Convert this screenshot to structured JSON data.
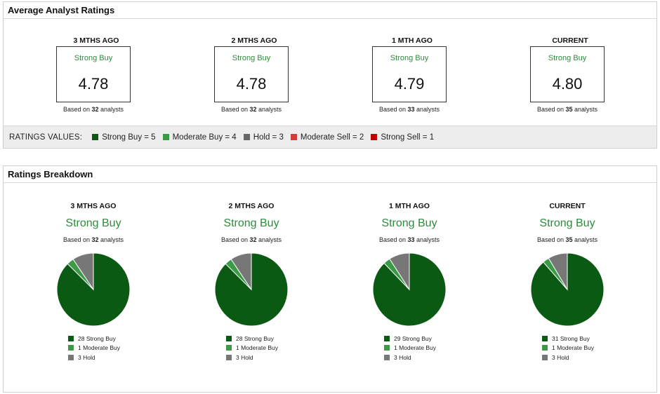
{
  "colors": {
    "strong_buy": "#0b5a14",
    "moderate_buy": "#3a9a45",
    "hold": "#777777",
    "moderate_sell": "#d43a3a",
    "strong_sell": "#c00000",
    "rating_text": "#2e8b3d"
  },
  "average": {
    "title": "Average Analyst Ratings",
    "periods": [
      {
        "title": "3 MTHS AGO",
        "rating": "Strong Buy",
        "score": "4.78",
        "based_prefix": "Based on ",
        "count": "32",
        "based_suffix": " analysts"
      },
      {
        "title": "2 MTHS AGO",
        "rating": "Strong Buy",
        "score": "4.78",
        "based_prefix": "Based on ",
        "count": "32",
        "based_suffix": " analysts"
      },
      {
        "title": "1 MTH AGO",
        "rating": "Strong Buy",
        "score": "4.79",
        "based_prefix": "Based on ",
        "count": "33",
        "based_suffix": " analysts"
      },
      {
        "title": "CURRENT",
        "rating": "Strong Buy",
        "score": "4.80",
        "based_prefix": "Based on ",
        "count": "35",
        "based_suffix": " analysts"
      }
    ],
    "values_label": "RATINGS VALUES:",
    "values": [
      {
        "label": "Strong Buy = 5",
        "color": "#0b5a14"
      },
      {
        "label": "Moderate Buy = 4",
        "color": "#3a9a45"
      },
      {
        "label": "Hold = 3",
        "color": "#666666"
      },
      {
        "label": "Moderate Sell = 2",
        "color": "#d43a3a"
      },
      {
        "label": "Strong Sell = 1",
        "color": "#c00000"
      }
    ]
  },
  "breakdown": {
    "title": "Ratings Breakdown",
    "periods": [
      {
        "title": "3 MTHS AGO",
        "rating": "Strong Buy",
        "based_prefix": "Based on ",
        "count": "32",
        "based_suffix": " analysts",
        "legend": [
          "28 Strong Buy",
          "1 Moderate Buy",
          "3 Hold"
        ]
      },
      {
        "title": "2 MTHS AGO",
        "rating": "Strong Buy",
        "based_prefix": "Based on ",
        "count": "32",
        "based_suffix": " analysts",
        "legend": [
          "28 Strong Buy",
          "1 Moderate Buy",
          "3 Hold"
        ]
      },
      {
        "title": "1 MTH AGO",
        "rating": "Strong Buy",
        "based_prefix": "Based on ",
        "count": "33",
        "based_suffix": " analysts",
        "legend": [
          "29 Strong Buy",
          "1 Moderate Buy",
          "3 Hold"
        ]
      },
      {
        "title": "CURRENT",
        "rating": "Strong Buy",
        "based_prefix": "Based on ",
        "count": "35",
        "based_suffix": " analysts",
        "legend": [
          "31 Strong Buy",
          "1 Moderate Buy",
          "3 Hold"
        ]
      }
    ]
  },
  "chart_data": [
    {
      "type": "pie",
      "title": "3 MTHS AGO",
      "categories": [
        "Strong Buy",
        "Moderate Buy",
        "Hold"
      ],
      "values": [
        28,
        1,
        3
      ]
    },
    {
      "type": "pie",
      "title": "2 MTHS AGO",
      "categories": [
        "Strong Buy",
        "Moderate Buy",
        "Hold"
      ],
      "values": [
        28,
        1,
        3
      ]
    },
    {
      "type": "pie",
      "title": "1 MTH AGO",
      "categories": [
        "Strong Buy",
        "Moderate Buy",
        "Hold"
      ],
      "values": [
        29,
        1,
        3
      ]
    },
    {
      "type": "pie",
      "title": "CURRENT",
      "categories": [
        "Strong Buy",
        "Moderate Buy",
        "Hold"
      ],
      "values": [
        31,
        1,
        3
      ]
    }
  ]
}
